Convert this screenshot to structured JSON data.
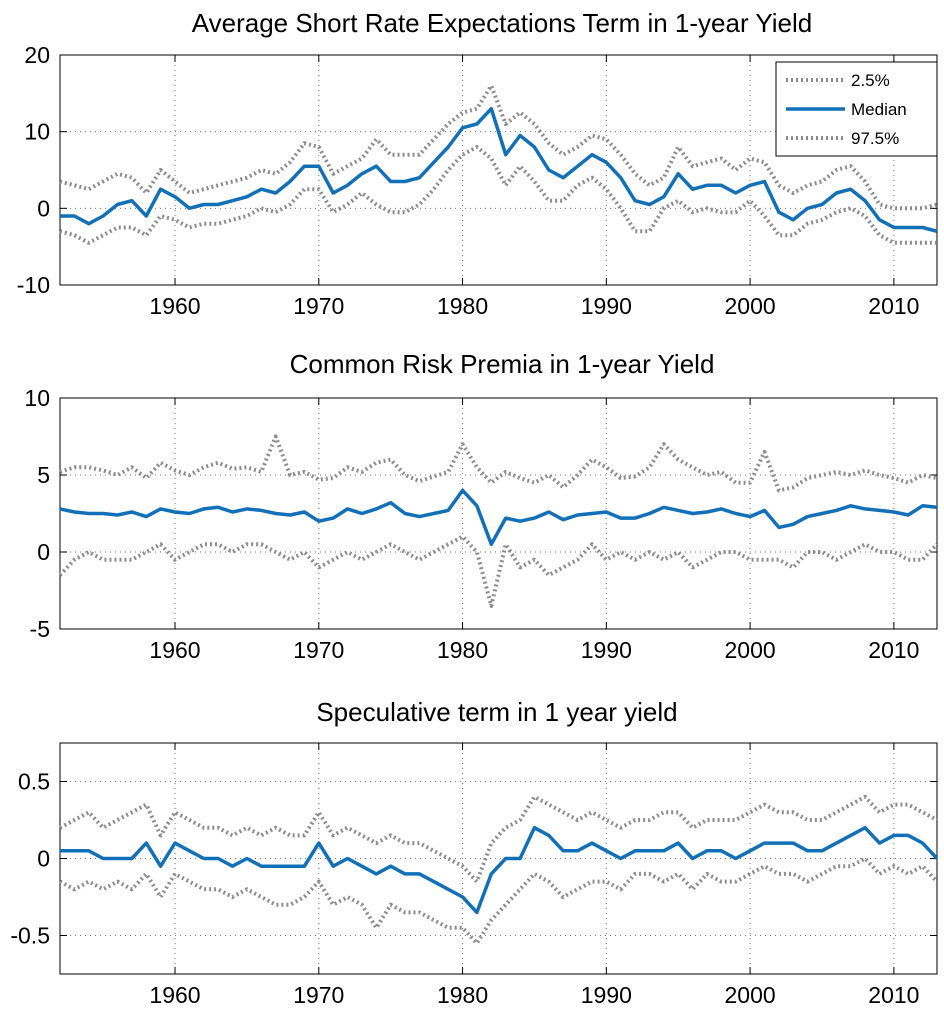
{
  "colors": {
    "median": "#1170b8",
    "band": "#8c8c8c",
    "axis": "#000000"
  },
  "legend": {
    "placement": "top-right",
    "entries": [
      "2.5%",
      "Median",
      "97.5%"
    ]
  },
  "chart_data": [
    {
      "type": "line",
      "title": "Average Short Rate Expectations Term in 1-year Yield",
      "xlabel": "",
      "ylabel": "",
      "xlim": [
        1952,
        2013
      ],
      "ylim": [
        -10,
        20
      ],
      "xticks": [
        1960,
        1970,
        1980,
        1990,
        2000,
        2010
      ],
      "yticks": [
        -10,
        0,
        10,
        20
      ],
      "ytick_labels": [
        "-10",
        "0",
        "10",
        "20"
      ],
      "grid": true,
      "legend": true,
      "x": [
        1952,
        1953,
        1954,
        1955,
        1956,
        1957,
        1958,
        1959,
        1960,
        1961,
        1962,
        1963,
        1964,
        1965,
        1966,
        1967,
        1968,
        1969,
        1970,
        1971,
        1972,
        1973,
        1974,
        1975,
        1976,
        1977,
        1978,
        1979,
        1980,
        1981,
        1982,
        1983,
        1984,
        1985,
        1986,
        1987,
        1988,
        1989,
        1990,
        1991,
        1992,
        1993,
        1994,
        1995,
        1996,
        1997,
        1998,
        1999,
        2000,
        2001,
        2002,
        2003,
        2004,
        2005,
        2006,
        2007,
        2008,
        2009,
        2010,
        2011,
        2012,
        2013
      ],
      "series": [
        {
          "name": "2.5%",
          "style": "dotted",
          "values": [
            -3,
            -3.5,
            -4.5,
            -3.5,
            -2.5,
            -2.5,
            -3.5,
            -1,
            -1.5,
            -2.5,
            -2,
            -2,
            -1.5,
            -1,
            0,
            -0.5,
            0.5,
            2.5,
            2.5,
            -0.5,
            0.5,
            2,
            0.5,
            -0.5,
            -0.5,
            0.5,
            2.5,
            5,
            7,
            8,
            6.5,
            3,
            5.5,
            3.5,
            1,
            1,
            3,
            4,
            2.5,
            0,
            -3,
            -3,
            0,
            1,
            -0.5,
            0,
            -0.5,
            -0.5,
            1,
            -1,
            -3.5,
            -3.5,
            -2,
            -1.5,
            -0.5,
            0,
            -1,
            -3.5,
            -4.5,
            -4.5,
            -4.5,
            -4.5
          ]
        },
        {
          "name": "Median",
          "style": "solid",
          "values": [
            -1,
            -1,
            -2,
            -1,
            0.5,
            1,
            -1,
            2.5,
            1.5,
            0,
            0.5,
            0.5,
            1,
            1.5,
            2.5,
            2,
            3.5,
            5.5,
            5.5,
            2,
            3,
            4.5,
            5.5,
            3.5,
            3.5,
            4,
            6,
            8,
            10.5,
            11,
            13,
            7,
            9.5,
            8,
            5,
            4,
            5.5,
            7,
            6,
            4,
            1,
            0.5,
            1.5,
            4.5,
            2.5,
            3,
            3,
            2,
            3,
            3.5,
            -0.5,
            -1.5,
            0,
            0.5,
            2,
            2.5,
            1,
            -1.5,
            -2.5,
            -2.5,
            -2.5,
            -3
          ]
        },
        {
          "name": "97.5%",
          "style": "dotted",
          "values": [
            3.5,
            3,
            2.5,
            3.5,
            4.5,
            4,
            2,
            5,
            3.5,
            2,
            2.5,
            3,
            3.5,
            4,
            5,
            4.5,
            6,
            8.5,
            8,
            4.5,
            5.5,
            6.5,
            9,
            7,
            7,
            7,
            9,
            11,
            12.5,
            13,
            16,
            11,
            12.5,
            11,
            8.5,
            7,
            8,
            9.5,
            9,
            7,
            4.5,
            3,
            4,
            8,
            5.5,
            6,
            6.5,
            5,
            6.5,
            6,
            3,
            2,
            3,
            3.5,
            5,
            5.5,
            3.5,
            0.5,
            0,
            0,
            0,
            0.5
          ]
        }
      ]
    },
    {
      "type": "line",
      "title": "Common Risk Premia in 1-year Yield",
      "xlabel": "",
      "ylabel": "",
      "xlim": [
        1952,
        2013
      ],
      "ylim": [
        -5,
        10
      ],
      "xticks": [
        1960,
        1970,
        1980,
        1990,
        2000,
        2010
      ],
      "yticks": [
        -5,
        0,
        5,
        10
      ],
      "ytick_labels": [
        "-5",
        "0",
        "5",
        "10"
      ],
      "grid": true,
      "legend": false,
      "x": [
        1952,
        1953,
        1954,
        1955,
        1956,
        1957,
        1958,
        1959,
        1960,
        1961,
        1962,
        1963,
        1964,
        1965,
        1966,
        1967,
        1968,
        1969,
        1970,
        1971,
        1972,
        1973,
        1974,
        1975,
        1976,
        1977,
        1978,
        1979,
        1980,
        1981,
        1982,
        1983,
        1984,
        1985,
        1986,
        1987,
        1988,
        1989,
        1990,
        1991,
        1992,
        1993,
        1994,
        1995,
        1996,
        1997,
        1998,
        1999,
        2000,
        2001,
        2002,
        2003,
        2004,
        2005,
        2006,
        2007,
        2008,
        2009,
        2010,
        2011,
        2012,
        2013
      ],
      "series": [
        {
          "name": "2.5%",
          "style": "dotted",
          "values": [
            -1.5,
            -0.5,
            0,
            -0.5,
            -0.5,
            -0.5,
            0,
            0.5,
            -0.5,
            0,
            0.5,
            0.5,
            0,
            0.5,
            0.5,
            0,
            -0.5,
            0,
            -1,
            -0.5,
            0,
            -0.5,
            0,
            0.5,
            0,
            -0.5,
            0,
            0.5,
            1,
            0,
            -3.5,
            0.5,
            -1,
            -0.5,
            -1.5,
            -1,
            -0.5,
            0.5,
            -0.5,
            0,
            -0.5,
            0,
            -0.5,
            0,
            -1,
            -0.5,
            0,
            0,
            -0.5,
            -0.5,
            -0.5,
            -1,
            0,
            0,
            -0.5,
            0,
            0.5,
            0,
            0,
            -0.5,
            -0.5,
            0.5
          ]
        },
        {
          "name": "Median",
          "style": "solid",
          "values": [
            2.8,
            2.6,
            2.5,
            2.5,
            2.4,
            2.6,
            2.3,
            2.8,
            2.6,
            2.5,
            2.8,
            2.9,
            2.6,
            2.8,
            2.7,
            2.5,
            2.4,
            2.6,
            2,
            2.2,
            2.8,
            2.5,
            2.8,
            3.2,
            2.5,
            2.3,
            2.5,
            2.7,
            4,
            3,
            0.5,
            2.2,
            2,
            2.2,
            2.6,
            2.1,
            2.4,
            2.5,
            2.6,
            2.2,
            2.2,
            2.5,
            2.9,
            2.7,
            2.5,
            2.6,
            2.8,
            2.5,
            2.3,
            2.7,
            1.6,
            1.8,
            2.3,
            2.5,
            2.7,
            3,
            2.8,
            2.7,
            2.6,
            2.4,
            3,
            2.9
          ]
        },
        {
          "name": "97.5%",
          "style": "dotted",
          "values": [
            5.2,
            5.5,
            5.5,
            5.3,
            5,
            5.5,
            4.8,
            5.8,
            5.3,
            5,
            5.5,
            5.8,
            5.4,
            5.5,
            5.2,
            7.5,
            5,
            5.2,
            4.7,
            4.8,
            5.5,
            5.2,
            5.8,
            6,
            5,
            4.6,
            4.9,
            5.2,
            7,
            5.5,
            4.5,
            5.2,
            4.8,
            4.5,
            5,
            4.2,
            5,
            6,
            5.5,
            4.8,
            4.9,
            5.5,
            7,
            6,
            5.5,
            5,
            5.2,
            4.5,
            4.5,
            6.5,
            4,
            4.2,
            4.8,
            5,
            5.2,
            5,
            5.3,
            5,
            4.8,
            4.5,
            5,
            4.8
          ]
        }
      ]
    },
    {
      "type": "line",
      "title": "Speculative term in 1 year yield",
      "xlabel": "",
      "ylabel": "",
      "xlim": [
        1952,
        2013
      ],
      "ylim": [
        -0.75,
        0.75
      ],
      "xticks": [
        1960,
        1970,
        1980,
        1990,
        2000,
        2010
      ],
      "yticks": [
        -0.5,
        0,
        0.5
      ],
      "ytick_labels": [
        "-0.5",
        "0",
        "0.5"
      ],
      "grid": true,
      "legend": false,
      "x": [
        1952,
        1953,
        1954,
        1955,
        1956,
        1957,
        1958,
        1959,
        1960,
        1961,
        1962,
        1963,
        1964,
        1965,
        1966,
        1967,
        1968,
        1969,
        1970,
        1971,
        1972,
        1973,
        1974,
        1975,
        1976,
        1977,
        1978,
        1979,
        1980,
        1981,
        1982,
        1983,
        1984,
        1985,
        1986,
        1987,
        1988,
        1989,
        1990,
        1991,
        1992,
        1993,
        1994,
        1995,
        1996,
        1997,
        1998,
        1999,
        2000,
        2001,
        2002,
        2003,
        2004,
        2005,
        2006,
        2007,
        2008,
        2009,
        2010,
        2011,
        2012,
        2013
      ],
      "series": [
        {
          "name": "2.5%",
          "style": "dotted",
          "values": [
            -0.15,
            -0.2,
            -0.15,
            -0.2,
            -0.15,
            -0.2,
            -0.1,
            -0.25,
            -0.1,
            -0.15,
            -0.2,
            -0.2,
            -0.25,
            -0.2,
            -0.25,
            -0.3,
            -0.3,
            -0.25,
            -0.15,
            -0.3,
            -0.25,
            -0.3,
            -0.45,
            -0.3,
            -0.35,
            -0.35,
            -0.4,
            -0.45,
            -0.45,
            -0.55,
            -0.4,
            -0.3,
            -0.2,
            -0.1,
            -0.15,
            -0.25,
            -0.2,
            -0.15,
            -0.15,
            -0.2,
            -0.1,
            -0.1,
            -0.15,
            -0.1,
            -0.2,
            -0.1,
            -0.15,
            -0.15,
            -0.1,
            -0.05,
            -0.1,
            -0.1,
            -0.15,
            -0.1,
            -0.05,
            -0.05,
            0,
            -0.1,
            -0.05,
            -0.1,
            -0.05,
            -0.15
          ]
        },
        {
          "name": "Median",
          "style": "solid",
          "values": [
            0.05,
            0.05,
            0.05,
            0,
            0,
            0,
            0.1,
            -0.05,
            0.1,
            0.05,
            0,
            0,
            -0.05,
            0,
            -0.05,
            -0.05,
            -0.05,
            -0.05,
            0.1,
            -0.05,
            0,
            -0.05,
            -0.1,
            -0.05,
            -0.1,
            -0.1,
            -0.15,
            -0.2,
            -0.25,
            -0.35,
            -0.1,
            0,
            0,
            0.2,
            0.15,
            0.05,
            0.05,
            0.1,
            0.05,
            0,
            0.05,
            0.05,
            0.05,
            0.1,
            0,
            0.05,
            0.05,
            0,
            0.05,
            0.1,
            0.1,
            0.1,
            0.05,
            0.05,
            0.1,
            0.15,
            0.2,
            0.1,
            0.15,
            0.15,
            0.1,
            0
          ]
        },
        {
          "name": "97.5%",
          "style": "dotted",
          "values": [
            0.2,
            0.25,
            0.3,
            0.2,
            0.25,
            0.3,
            0.35,
            0.15,
            0.3,
            0.25,
            0.2,
            0.2,
            0.15,
            0.2,
            0.15,
            0.2,
            0.15,
            0.15,
            0.3,
            0.15,
            0.2,
            0.15,
            0.1,
            0.15,
            0.1,
            0.1,
            0.05,
            0,
            -0.05,
            -0.15,
            0.1,
            0.2,
            0.25,
            0.4,
            0.35,
            0.3,
            0.25,
            0.3,
            0.25,
            0.2,
            0.25,
            0.25,
            0.3,
            0.3,
            0.2,
            0.25,
            0.25,
            0.25,
            0.3,
            0.35,
            0.3,
            0.3,
            0.25,
            0.25,
            0.3,
            0.35,
            0.4,
            0.3,
            0.35,
            0.35,
            0.3,
            0.25
          ]
        }
      ]
    }
  ]
}
